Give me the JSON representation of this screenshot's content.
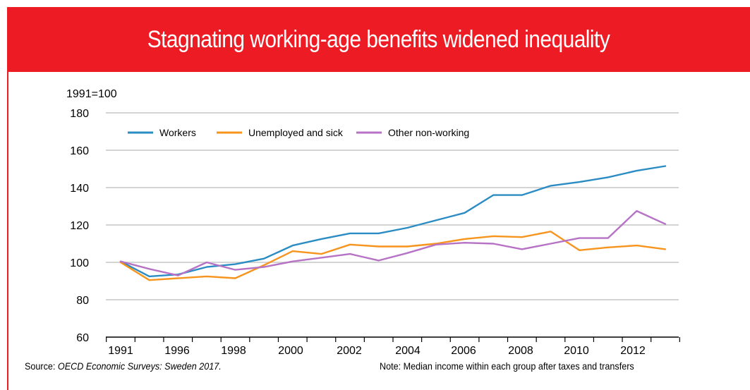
{
  "title": "Stagnating working-age benefits widened inequality",
  "footer": {
    "source_label": "Source: ",
    "source_italic": "OECD Economic Surveys: Sweden 2017.",
    "note": "Note: Median income within each group after taxes and transfers"
  },
  "colors": {
    "banner": "#ed1c24",
    "workers": "#2b8cc4",
    "unemployed": "#f7941d",
    "other": "#b672c4",
    "grid": "#d4d4d4"
  },
  "chart_data": {
    "type": "line",
    "ylabel": "1991=100",
    "ylim": [
      60,
      180
    ],
    "yticks": [
      60,
      80,
      100,
      120,
      140,
      160,
      180
    ],
    "x_tick_labels": [
      "1991",
      "1996",
      "1998",
      "2000",
      "2002",
      "2004",
      "2006",
      "2008",
      "2010",
      "2012"
    ],
    "grid": true,
    "legend_position": "top-left",
    "series": [
      {
        "name": "Workers",
        "values": [
          100.5,
          92.5,
          93.5,
          97.5,
          99,
          102,
          109,
          112.5,
          115.5,
          115.5,
          118.5,
          122.5,
          126.5,
          136,
          136,
          141,
          143,
          145.5,
          149,
          151.5
        ]
      },
      {
        "name": "Unemployed and sick",
        "values": [
          100,
          90.5,
          91.5,
          92.5,
          91.5,
          98.5,
          106,
          104.5,
          109.5,
          108.5,
          108.5,
          110,
          112.5,
          114,
          113.5,
          116.5,
          106.5,
          108,
          109,
          107
        ]
      },
      {
        "name": "Other non-working",
        "values": [
          100.5,
          96.5,
          93,
          100,
          96,
          97.5,
          100.5,
          102.5,
          104.5,
          101,
          105,
          109.5,
          110.5,
          110,
          107,
          110,
          113,
          113,
          127.5,
          120.5
        ]
      }
    ]
  }
}
